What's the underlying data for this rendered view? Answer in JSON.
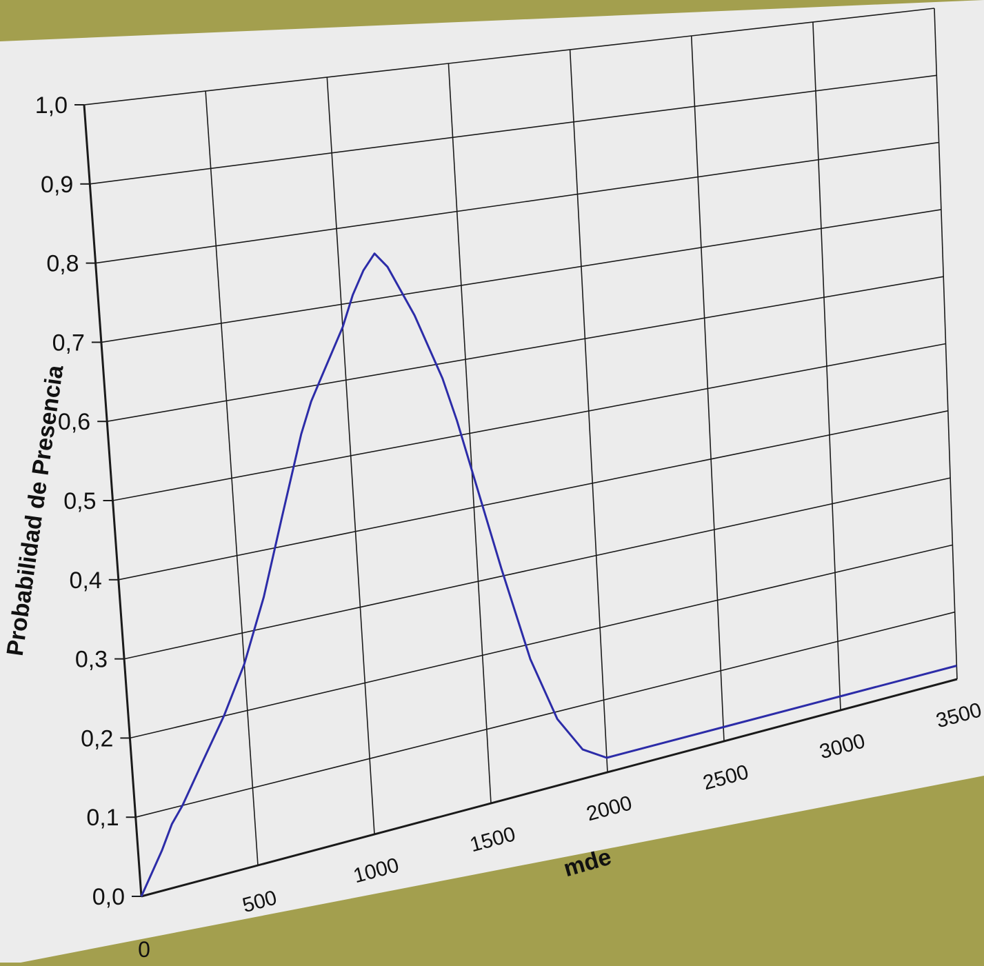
{
  "colors": {
    "background": "#a39f4e",
    "paper": "#ececec",
    "grid": "#1a1a1a",
    "curve": "#2c2ca8",
    "text": "#111111"
  },
  "chart_data": {
    "type": "line",
    "title": "",
    "xlabel": "mde",
    "ylabel": "Probabilidad de Presencia",
    "xlim": [
      0,
      3500
    ],
    "ylim": [
      0.0,
      1.0
    ],
    "grid": true,
    "x_ticks": [
      0,
      500,
      1000,
      1500,
      2000,
      2500,
      3000,
      3500
    ],
    "x_tick_labels": [
      "0",
      "500",
      "1000",
      "1500",
      "2000",
      "2500",
      "3000",
      "3500"
    ],
    "y_ticks": [
      0.0,
      0.1,
      0.2,
      0.3,
      0.4,
      0.5,
      0.6,
      0.7,
      0.8,
      0.9,
      1.0
    ],
    "y_tick_labels": [
      "0,0",
      "0,1",
      "0,2",
      "0,3",
      "0,4",
      "0,5",
      "0,6",
      "0,7",
      "0,8",
      "0,9",
      "1,0"
    ],
    "series": [
      {
        "color": "#2c2ca8",
        "x": [
          0,
          100,
          150,
          200,
          300,
          400,
          500,
          600,
          700,
          800,
          850,
          900,
          1000,
          1050,
          1100,
          1150,
          1200,
          1300,
          1400,
          1450,
          1500,
          1600,
          1700,
          1800,
          1900,
          2000,
          2100,
          2500,
          3000,
          3500
        ],
        "y": [
          0.0,
          0.05,
          0.08,
          0.1,
          0.15,
          0.2,
          0.26,
          0.34,
          0.44,
          0.54,
          0.58,
          0.61,
          0.67,
          0.71,
          0.74,
          0.76,
          0.74,
          0.67,
          0.58,
          0.52,
          0.45,
          0.31,
          0.18,
          0.09,
          0.04,
          0.02,
          0.02,
          0.02,
          0.02,
          0.02
        ]
      }
    ]
  }
}
